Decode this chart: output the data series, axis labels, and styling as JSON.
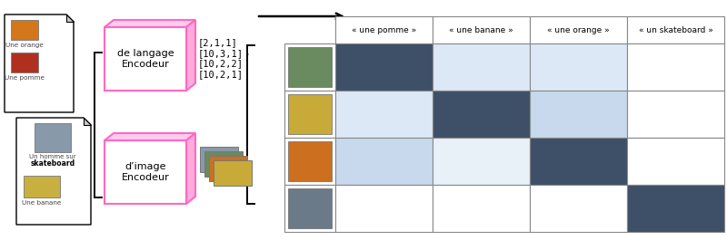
{
  "bg_color": "#ffffff",
  "grid_header_labels": [
    "« une pomme »",
    "« une banane »",
    "« une orange »",
    "« un skateboard »"
  ],
  "grid_colors": [
    [
      "#3d5068",
      "#dce8f5",
      "#dce8f5",
      "#ffffff"
    ],
    [
      "#dce8f5",
      "#3d5068",
      "#c8d8ed",
      "#ffffff"
    ],
    [
      "#c8d8ed",
      "#e8f0f8",
      "#3d5068",
      "#ffffff"
    ],
    [
      "#ffffff",
      "#ffffff",
      "#ffffff",
      "#3d5068"
    ]
  ],
  "encoder_lang_label": "de langage\nEncodeur",
  "encoder_img_label": "d’image\nEncodeur",
  "vector_text": "[2,1,1]\n[10,3,1]\n[10,2,2]\n[10,2,1]",
  "pink": "#ff69c0",
  "dark_blue": "#3d5068",
  "light_blue": "#dce8f5",
  "med_blue": "#c8d8ed",
  "doc1_orange_color": "#d4771a",
  "doc1_apple_color": "#b03020",
  "doc2_skater_color": "#8899aa",
  "doc2_banana_color": "#c8b040",
  "thumb_colors": [
    "#6a8a60",
    "#c8aa38",
    "#cc7020",
    "#6a7a88"
  ]
}
